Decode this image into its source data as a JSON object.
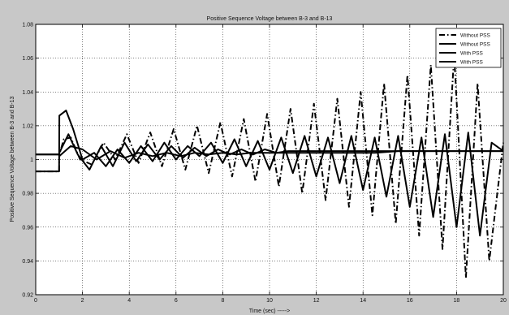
{
  "chart_data": {
    "type": "line",
    "title": "Positive Sequence Voltage between B-3 and B-13",
    "xlabel": "Time (sec) ----->",
    "ylabel": "Positive Sequence Voltage between B-3 and B-13",
    "xlim": [
      0,
      20
    ],
    "ylim": [
      0.92,
      1.08
    ],
    "x_ticks": [
      "0",
      "2",
      "4",
      "6",
      "8",
      "10",
      "12",
      "14",
      "16",
      "18",
      "20"
    ],
    "y_ticks": [
      "0.92",
      "0.94",
      "0.96",
      "0.98",
      "1",
      "1.02",
      "1.04",
      "1.06",
      "1.08"
    ],
    "grid": true,
    "legend_position": "top-right",
    "legend": [
      "Without PSS",
      "Without PSS",
      "With PSS",
      "With PSS"
    ],
    "series": [
      {
        "name": "Without PSS",
        "style": "dashdot",
        "x": [
          0,
          1,
          1.01,
          1.2,
          1.5,
          1.9,
          2.4,
          2.9,
          3.4,
          3.9,
          4.4,
          4.9,
          5.4,
          5.9,
          6.4,
          6.9,
          7.4,
          7.9,
          8.4,
          8.9,
          9.4,
          9.9,
          10.4,
          10.9,
          11.4,
          11.9,
          12.4,
          12.9,
          13.4,
          13.9,
          14.4,
          14.9,
          15.4,
          15.9,
          16.4,
          16.9,
          17.4,
          17.9,
          18.4,
          18.9,
          19.4,
          20
        ],
        "y": [
          0.993,
          0.993,
          1.003,
          1.012,
          1.013,
          1.0,
          0.997,
          1.01,
          1.0,
          1.015,
          0.998,
          1.016,
          0.996,
          1.018,
          0.994,
          1.02,
          0.992,
          1.022,
          0.99,
          1.024,
          0.987,
          1.027,
          0.984,
          1.03,
          0.98,
          1.033,
          0.976,
          1.036,
          0.972,
          1.04,
          0.967,
          1.045,
          0.962,
          1.05,
          0.955,
          1.056,
          0.947,
          1.062,
          0.93,
          1.045,
          0.94,
          1.01
        ]
      },
      {
        "name": "Without PSS",
        "style": "solid",
        "x": [
          0,
          1,
          1.01,
          1.3,
          1.6,
          2.0,
          2.5,
          3.0,
          3.5,
          4.0,
          4.5,
          5.0,
          5.5,
          6.0,
          6.5,
          7.0,
          7.5,
          8.0,
          8.5,
          9.0,
          9.5,
          10.0,
          10.5,
          11.0,
          11.5,
          12.0,
          12.5,
          13.0,
          13.5,
          14.0,
          14.5,
          15.0,
          15.5,
          16.0,
          16.5,
          17.0,
          17.5,
          18.0,
          18.5,
          19.0,
          19.5,
          20
        ],
        "y": [
          0.993,
          0.993,
          1.026,
          1.029,
          1.018,
          1.0,
          1.004,
          0.996,
          1.006,
          0.998,
          1.008,
          0.999,
          1.01,
          1.0,
          1.008,
          1.002,
          1.01,
          0.998,
          1.012,
          0.996,
          1.011,
          0.994,
          1.013,
          0.992,
          1.014,
          0.99,
          1.013,
          0.986,
          1.014,
          0.982,
          1.013,
          0.978,
          1.014,
          0.972,
          1.013,
          0.966,
          1.015,
          0.96,
          1.016,
          0.955,
          1.01,
          1.005
        ]
      },
      {
        "name": "With PSS",
        "style": "solid",
        "x": [
          0,
          1,
          1.01,
          1.4,
          1.8,
          2.3,
          2.8,
          3.3,
          3.8,
          4.3,
          4.8,
          5.3,
          5.8,
          6.3,
          6.8,
          7.3,
          7.8,
          8.3,
          8.8,
          9.3,
          9.8,
          10.3,
          10.8,
          11.5,
          12.5,
          13.5,
          14.5,
          15.5,
          16.5,
          17.5,
          18.5,
          19.5,
          20
        ],
        "y": [
          1.003,
          1.003,
          1.004,
          1.015,
          1.003,
          0.994,
          1.008,
          0.996,
          1.01,
          0.999,
          1.009,
          1.0,
          1.008,
          1.001,
          1.007,
          1.002,
          1.006,
          1.003,
          1.006,
          1.003,
          1.006,
          1.004,
          1.005,
          1.005,
          1.005,
          1.005,
          1.005,
          1.005,
          1.005,
          1.005,
          1.005,
          1.005,
          1.005
        ]
      },
      {
        "name": "With PSS",
        "style": "solid",
        "x": [
          0,
          1,
          1.01,
          1.5,
          2.0,
          2.6,
          3.2,
          3.8,
          4.4,
          5.0,
          5.6,
          6.2,
          6.8,
          7.4,
          8.0,
          8.6,
          9.2,
          9.8,
          10.5,
          11.5,
          12.5,
          13.5,
          14.5,
          15.5,
          16.5,
          17.5,
          18.5,
          19.5,
          20
        ],
        "y": [
          1.003,
          1.003,
          1.002,
          1.008,
          1.006,
          1.0,
          1.005,
          1.001,
          1.004,
          1.002,
          1.004,
          1.002,
          1.004,
          1.003,
          1.004,
          1.003,
          1.004,
          1.004,
          1.004,
          1.004,
          1.004,
          1.004,
          1.004,
          1.005,
          1.005,
          1.005,
          1.005,
          1.005,
          1.005
        ]
      }
    ]
  }
}
